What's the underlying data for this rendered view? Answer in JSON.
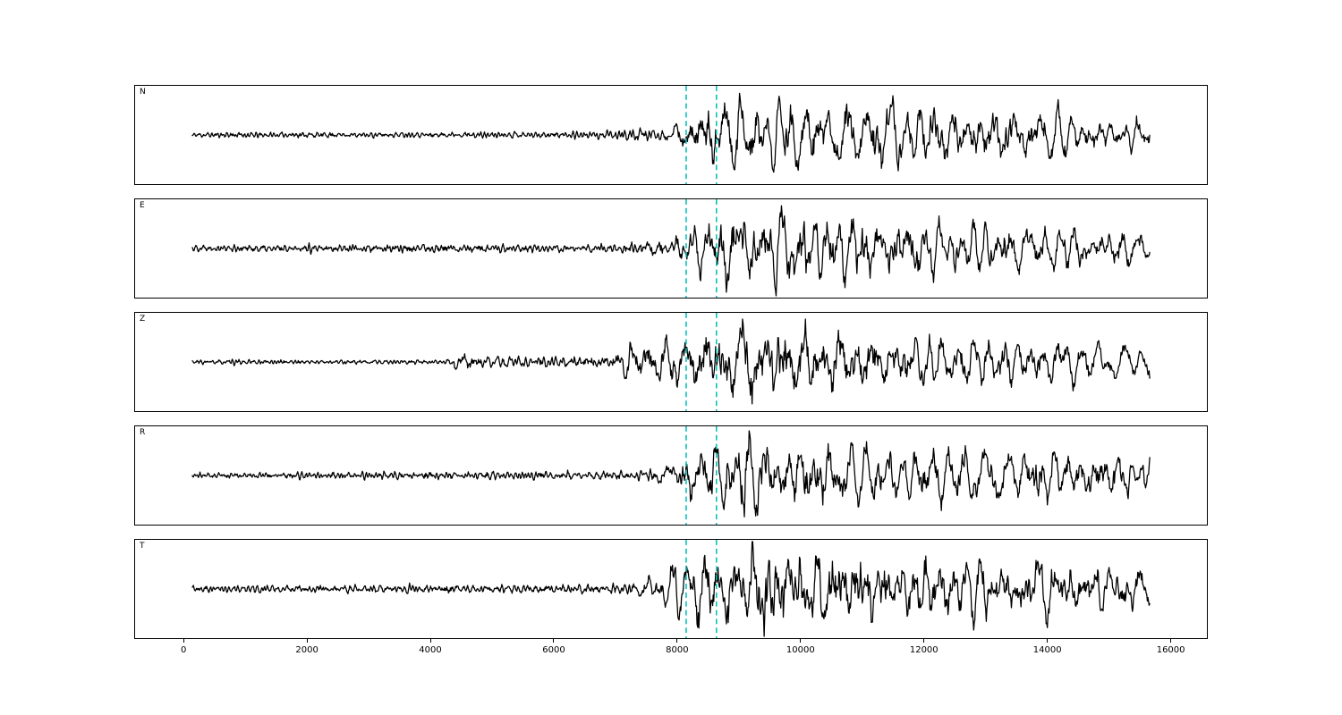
{
  "figure": {
    "background": "#ffffff"
  },
  "chart_data": {
    "type": "line",
    "kind": "seismogram-multipanel",
    "title": "",
    "xlabel": "",
    "ylabel": "",
    "xlim": [
      -800,
      16600
    ],
    "x_data_range": [
      0,
      15800
    ],
    "x_ticks": [
      0,
      2000,
      4000,
      6000,
      8000,
      10000,
      12000,
      14000,
      16000
    ],
    "x_tick_labels": [
      "0",
      "2000",
      "4000",
      "6000",
      "8000",
      "10000",
      "12000",
      "14000",
      "16000"
    ],
    "grid": false,
    "legend": "none",
    "trace_color": "#000000",
    "trace_width": 1.3,
    "vlines": {
      "positions": [
        8150,
        8650
      ],
      "color": "#00bfbf",
      "style": "dashed",
      "width": 1.6
    },
    "panels": [
      {
        "label": "N",
        "seed": 11,
        "envelope": [
          [
            0,
            0.08
          ],
          [
            4200,
            0.07
          ],
          [
            6600,
            0.1
          ],
          [
            7100,
            0.18
          ],
          [
            7900,
            0.24
          ],
          [
            8300,
            0.5
          ],
          [
            8700,
            0.8
          ],
          [
            9300,
            0.92
          ],
          [
            10000,
            0.76
          ],
          [
            11200,
            0.72
          ],
          [
            12500,
            0.6
          ],
          [
            14000,
            0.52
          ],
          [
            15800,
            0.44
          ]
        ]
      },
      {
        "label": "E",
        "seed": 22,
        "envelope": [
          [
            0,
            0.1
          ],
          [
            6900,
            0.12
          ],
          [
            7500,
            0.28
          ],
          [
            8200,
            0.6
          ],
          [
            8800,
            0.84
          ],
          [
            9800,
            0.88
          ],
          [
            11000,
            0.8
          ],
          [
            12000,
            0.64
          ],
          [
            13500,
            0.52
          ],
          [
            15800,
            0.44
          ]
        ]
      },
      {
        "label": "Z",
        "seed": 33,
        "envelope": [
          [
            0,
            0.06
          ],
          [
            4200,
            0.06
          ],
          [
            4350,
            0.24
          ],
          [
            4900,
            0.16
          ],
          [
            6900,
            0.16
          ],
          [
            7100,
            0.6
          ],
          [
            7600,
            0.56
          ],
          [
            8300,
            0.76
          ],
          [
            9000,
            0.88
          ],
          [
            10500,
            0.84
          ],
          [
            11500,
            0.68
          ],
          [
            13000,
            0.56
          ],
          [
            15800,
            0.4
          ]
        ]
      },
      {
        "label": "R",
        "seed": 44,
        "envelope": [
          [
            0,
            0.08
          ],
          [
            7200,
            0.12
          ],
          [
            7700,
            0.28
          ],
          [
            8100,
            0.56
          ],
          [
            8600,
            0.84
          ],
          [
            9300,
            0.88
          ],
          [
            10500,
            0.68
          ],
          [
            12000,
            0.56
          ],
          [
            14000,
            0.6
          ],
          [
            15800,
            0.48
          ]
        ]
      },
      {
        "label": "T",
        "seed": 55,
        "envelope": [
          [
            0,
            0.1
          ],
          [
            7200,
            0.14
          ],
          [
            7600,
            0.4
          ],
          [
            8200,
            0.68
          ],
          [
            9000,
            0.92
          ],
          [
            10500,
            0.92
          ],
          [
            11800,
            0.76
          ],
          [
            13000,
            0.6
          ],
          [
            14800,
            0.68
          ],
          [
            15800,
            0.44
          ]
        ]
      }
    ]
  }
}
